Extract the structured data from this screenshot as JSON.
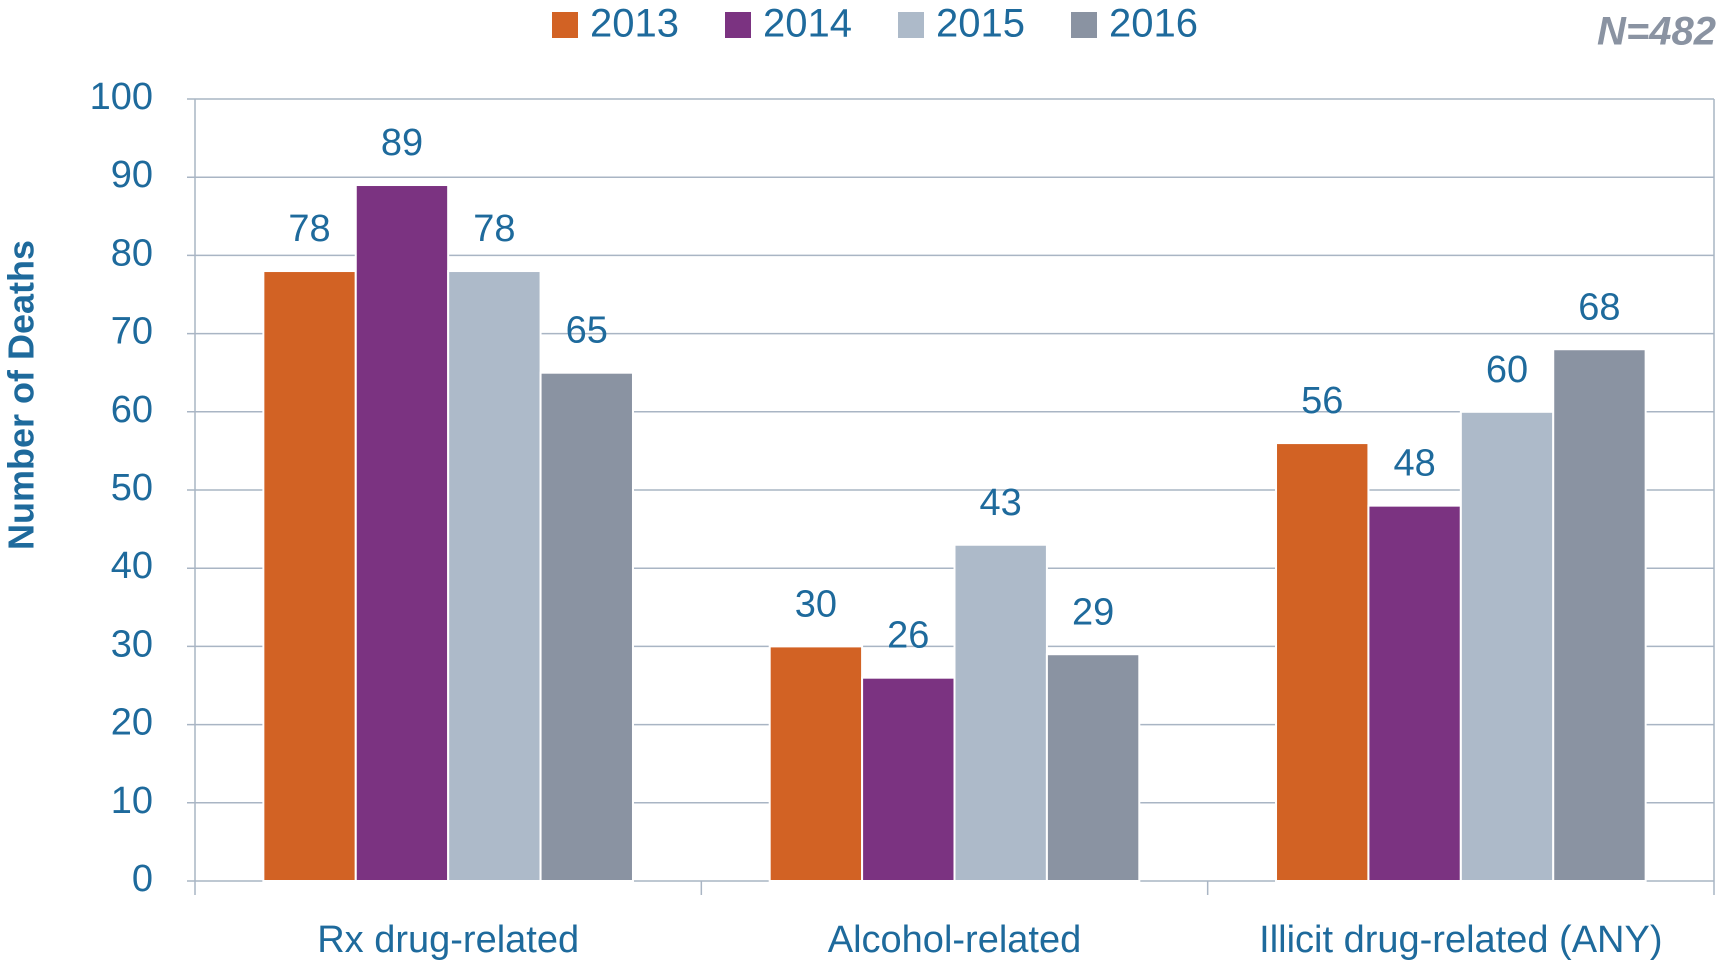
{
  "chart_data": {
    "type": "bar",
    "annotation": "N=482",
    "ylabel": "Number of Deaths",
    "categories": [
      "Rx drug-related",
      "Alcohol-related",
      "Illicit drug-related (ANY)"
    ],
    "series": [
      {
        "name": "2013",
        "color": "#d26224",
        "values": [
          78,
          30,
          56
        ]
      },
      {
        "name": "2014",
        "color": "#7b3381",
        "values": [
          89,
          26,
          48
        ]
      },
      {
        "name": "2015",
        "color": "#adbac9",
        "values": [
          78,
          43,
          60
        ]
      },
      {
        "name": "2016",
        "color": "#8a93a2",
        "values": [
          65,
          29,
          68
        ]
      }
    ],
    "ylim": [
      0,
      100
    ],
    "yticks": [
      0,
      10,
      20,
      30,
      40,
      50,
      60,
      70,
      80,
      90,
      100
    ],
    "grid": true,
    "legend": "top"
  }
}
